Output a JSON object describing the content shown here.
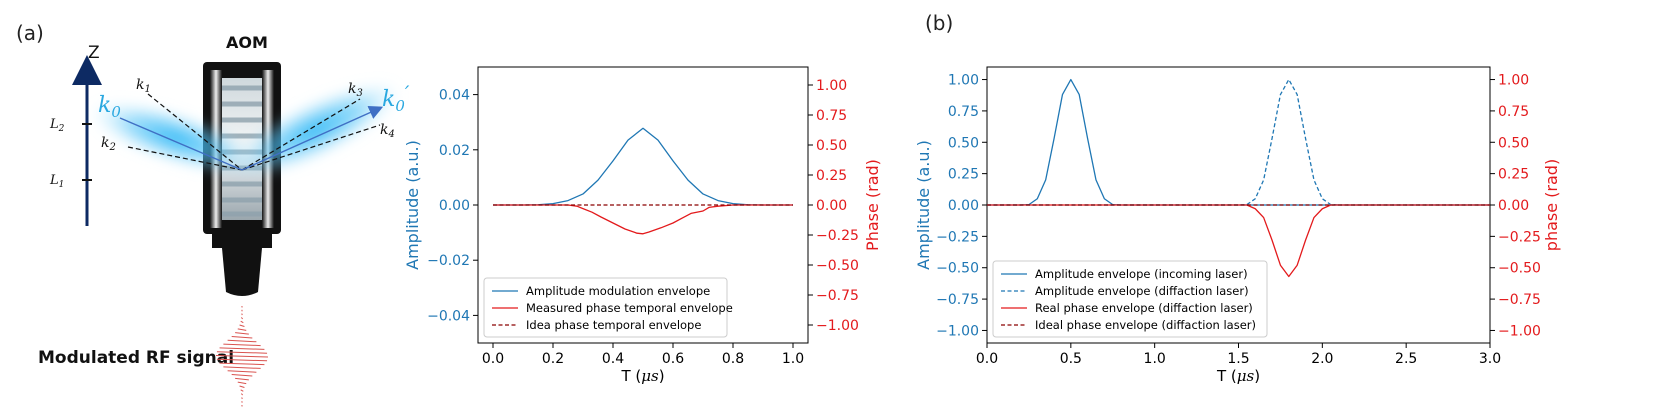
{
  "panel_a": {
    "label": "(a)",
    "aom_label": "AOM",
    "z_label": "Z",
    "l1_label": "L",
    "l1_sub": "1",
    "l2_label": "L",
    "l2_sub": "2",
    "k0_label": "k",
    "k0_sub": "0",
    "k0p_label": "k",
    "k0p_sub": "0",
    "k0p_prime": "′",
    "k1": "k",
    "k1_sub": "1",
    "k2": "k",
    "k2_sub": "2",
    "k3": "k",
    "k3_sub": "3",
    "k4": "k",
    "k4_sub": "4",
    "rf_label": "Modulated RF signal"
  },
  "panel_b": {
    "label": "(b)"
  },
  "colors": {
    "blue": "#1f77b4",
    "red": "#e31a1c",
    "darkred": "#8b0000",
    "beam": "#29b6f6",
    "navy": "#0d2a63",
    "rf": "#d9534f",
    "label_blue": "#2aa8e0"
  },
  "chart_data": [
    {
      "type": "line",
      "id": "chart1",
      "xlabel": "T (",
      "xlabel_unit": "μs",
      "xlabel_close": ")",
      "ylabel_left": "Amplitude (a.u.)",
      "ylabel_right": "Phase (rad)",
      "xlim": [
        -0.05,
        1.05
      ],
      "ylim_left": [
        -0.05,
        0.05
      ],
      "ylim_right": [
        -1.15,
        1.15
      ],
      "x_ticks": [
        0.0,
        0.2,
        0.4,
        0.6,
        0.8,
        1.0
      ],
      "x_tick_labels": [
        "0.0",
        "0.2",
        "0.4",
        "0.6",
        "0.8",
        "1.0"
      ],
      "y_left_ticks": [
        -0.04,
        -0.02,
        0.0,
        0.02,
        0.04
      ],
      "y_left_tick_labels": [
        "−0.04",
        "−0.02",
        "0.00",
        "0.02",
        "0.04"
      ],
      "y_right_ticks": [
        -1.0,
        -0.75,
        -0.5,
        -0.25,
        0.0,
        0.25,
        0.5,
        0.75,
        1.0
      ],
      "y_right_tick_labels": [
        "−1.00",
        "−0.75",
        "−0.50",
        "−0.25",
        "0.00",
        "0.25",
        "0.50",
        "0.75",
        "1.00"
      ],
      "legend": [
        "Amplitude modulation envelope",
        "Measured phase temporal envelope",
        "Idea phase temporal envelope"
      ],
      "series": [
        {
          "name": "Amplitude modulation envelope",
          "axis": "left",
          "style": "solid",
          "color": "blue",
          "x": [
            0.0,
            0.05,
            0.1,
            0.15,
            0.2,
            0.25,
            0.3,
            0.35,
            0.4,
            0.45,
            0.5,
            0.55,
            0.6,
            0.65,
            0.7,
            0.75,
            0.8,
            0.85,
            0.9,
            0.95,
            1.0
          ],
          "y": [
            0.0,
            0.0,
            0.0,
            0.0001,
            0.0005,
            0.0016,
            0.004,
            0.009,
            0.016,
            0.0235,
            0.0278,
            0.0235,
            0.016,
            0.009,
            0.004,
            0.0016,
            0.0005,
            0.0001,
            0.0,
            0.0,
            0.0
          ]
        },
        {
          "name": "Measured phase temporal envelope",
          "axis": "right",
          "style": "solid",
          "color": "red",
          "x": [
            0.0,
            0.1,
            0.2,
            0.25,
            0.28,
            0.3,
            0.33,
            0.36,
            0.4,
            0.44,
            0.48,
            0.5,
            0.52,
            0.56,
            0.6,
            0.63,
            0.66,
            0.7,
            0.72,
            0.75,
            0.8,
            1.0
          ],
          "y": [
            0.0,
            0.0,
            0.0,
            0.0,
            -0.01,
            -0.03,
            -0.06,
            -0.1,
            -0.15,
            -0.2,
            -0.235,
            -0.24,
            -0.225,
            -0.19,
            -0.15,
            -0.11,
            -0.07,
            -0.05,
            -0.02,
            -0.01,
            0.0,
            0.0
          ]
        },
        {
          "name": "Idea phase temporal envelope",
          "axis": "right",
          "style": "dashed",
          "color": "darkred",
          "x": [
            0.0,
            1.0
          ],
          "y": [
            0.0,
            0.0
          ]
        }
      ]
    },
    {
      "type": "line",
      "id": "chart2",
      "xlabel": "T (",
      "xlabel_unit": "μs",
      "xlabel_close": ")",
      "ylabel_left": "Amplitude (a.u.)",
      "ylabel_right": "phase (rad)",
      "xlim": [
        0.0,
        3.0
      ],
      "ylim_left": [
        -1.1,
        1.1
      ],
      "ylim_right": [
        -1.1,
        1.1
      ],
      "x_ticks": [
        0.0,
        0.5,
        1.0,
        1.5,
        2.0,
        2.5,
        3.0
      ],
      "x_tick_labels": [
        "0.0",
        "0.5",
        "1.0",
        "1.5",
        "2.0",
        "2.5",
        "3.0"
      ],
      "y_left_ticks": [
        -1.0,
        -0.75,
        -0.5,
        -0.25,
        0.0,
        0.25,
        0.5,
        0.75,
        1.0
      ],
      "y_left_tick_labels": [
        "−1.00",
        "−0.75",
        "−0.50",
        "−0.25",
        "0.00",
        "0.25",
        "0.50",
        "0.75",
        "1.00"
      ],
      "y_right_ticks": [
        -1.0,
        -0.75,
        -0.5,
        -0.25,
        0.0,
        0.25,
        0.5,
        0.75,
        1.0
      ],
      "y_right_tick_labels": [
        "−1.00",
        "−0.75",
        "−0.50",
        "−0.25",
        "0.00",
        "0.25",
        "0.50",
        "0.75",
        "1.00"
      ],
      "legend": [
        "Amplitude envelope (incoming laser)",
        "Amplitude envelope (diffaction laser)",
        "Real phase envelope (diffaction laser)",
        "Ideal phase envelope (diffaction laser)"
      ],
      "series": [
        {
          "name": "Amplitude envelope (incoming laser)",
          "axis": "left",
          "style": "solid",
          "color": "blue",
          "x": [
            0.0,
            0.2,
            0.25,
            0.3,
            0.35,
            0.4,
            0.45,
            0.5,
            0.55,
            0.6,
            0.65,
            0.7,
            0.75,
            0.8,
            3.0
          ],
          "y": [
            0.0,
            0.0,
            0.003,
            0.05,
            0.2,
            0.53,
            0.88,
            1.0,
            0.88,
            0.53,
            0.2,
            0.05,
            0.003,
            0.0,
            0.0
          ]
        },
        {
          "name": "Amplitude envelope (diffaction laser)",
          "axis": "left",
          "style": "dashed",
          "color": "blue",
          "x": [
            0.0,
            1.5,
            1.55,
            1.6,
            1.65,
            1.7,
            1.75,
            1.8,
            1.85,
            1.9,
            1.95,
            2.0,
            2.05,
            2.1,
            3.0
          ],
          "y": [
            0.0,
            0.0,
            0.003,
            0.05,
            0.2,
            0.53,
            0.88,
            1.0,
            0.88,
            0.53,
            0.2,
            0.05,
            0.003,
            0.0,
            0.0
          ]
        },
        {
          "name": "Real phase envelope (diffaction laser)",
          "axis": "right",
          "style": "solid",
          "color": "red",
          "x": [
            0.0,
            1.55,
            1.6,
            1.65,
            1.7,
            1.75,
            1.8,
            1.85,
            1.9,
            1.95,
            2.0,
            2.05,
            3.0
          ],
          "y": [
            0.0,
            0.0,
            -0.03,
            -0.1,
            -0.28,
            -0.48,
            -0.57,
            -0.48,
            -0.28,
            -0.1,
            -0.03,
            0.0,
            0.0
          ]
        },
        {
          "name": "Ideal phase envelope (diffaction laser)",
          "axis": "right",
          "style": "dashed",
          "color": "darkred",
          "x": [
            0.0,
            3.0
          ],
          "y": [
            0.0,
            0.0
          ]
        }
      ]
    }
  ]
}
